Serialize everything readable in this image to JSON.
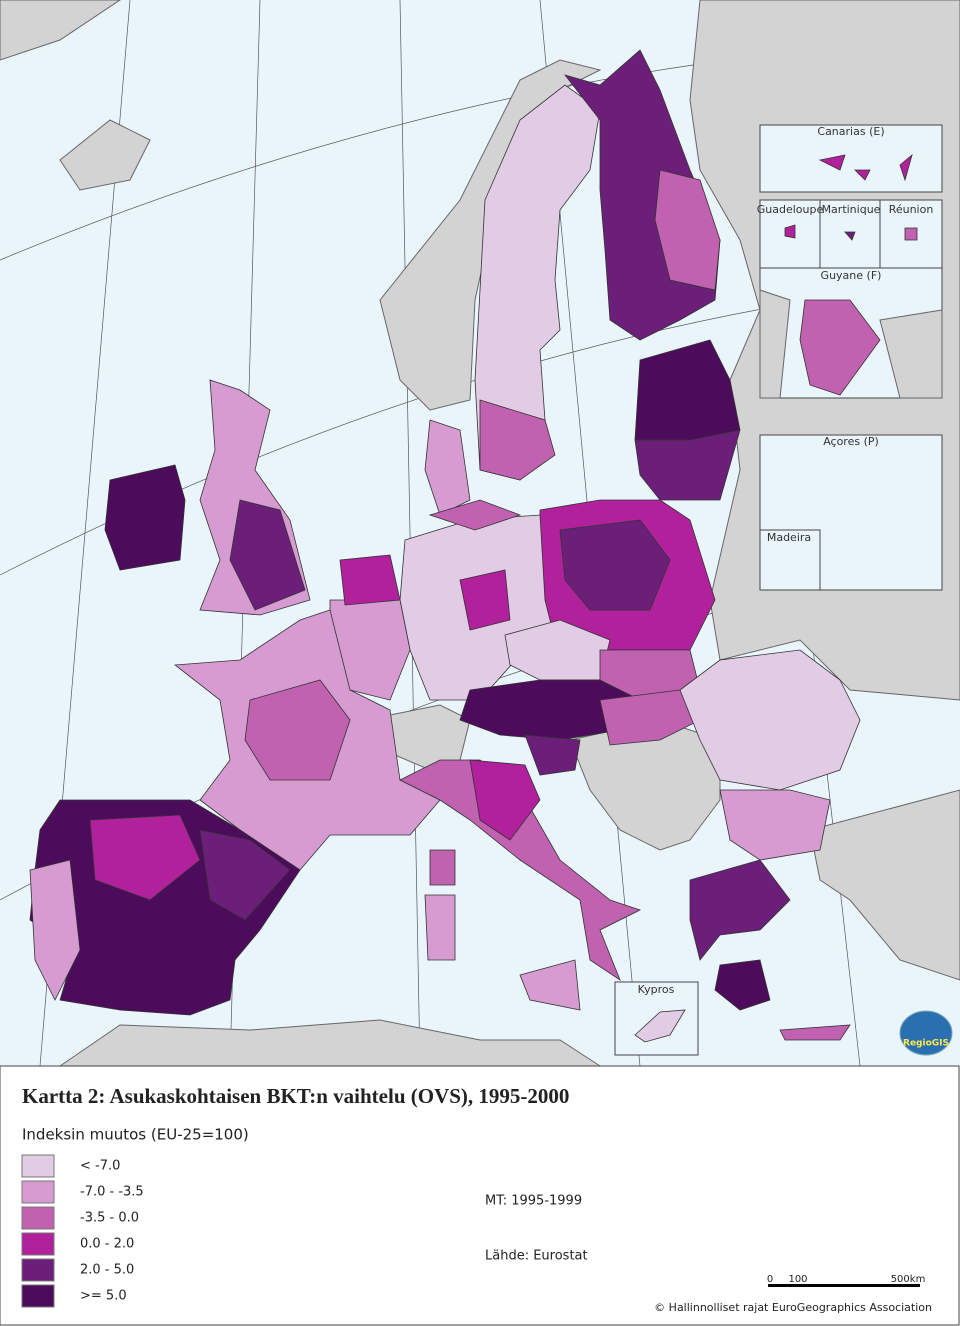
{
  "map": {
    "insets": [
      "Canarias (E)",
      "Guadeloupe",
      "Martinique",
      "Réunion",
      "Guyane (F)",
      "Açores (P)",
      "Madeira",
      "Kypros"
    ],
    "logo": "RegioGIS"
  },
  "title": "Kartta 2: Asukaskohtaisen BKT:n vaihtelu (OVS), 1995-2000",
  "subtitle": "Indeksin muutos  (EU-25=100)",
  "legend": [
    {
      "label": "< -7.0",
      "color": "#e2cbe5"
    },
    {
      "label": "-7.0 -  -3.5",
      "color": "#d69bd0"
    },
    {
      "label": "-3.5 - 0.0",
      "color": "#c062b0"
    },
    {
      "label": "0.0 - 2.0",
      "color": "#b0219b"
    },
    {
      "label": "2.0 - 5.0",
      "color": "#6c1f79"
    },
    {
      "label": ">= 5.0",
      "color": "#4d0b5b"
    }
  ],
  "notes": [
    "MT: 1995-1999",
    "Lähde: Eurostat"
  ],
  "scale_bar": [
    "0",
    "100",
    "500km"
  ],
  "copyright": "© Hallinnolliset rajat EuroGeographics Association"
}
